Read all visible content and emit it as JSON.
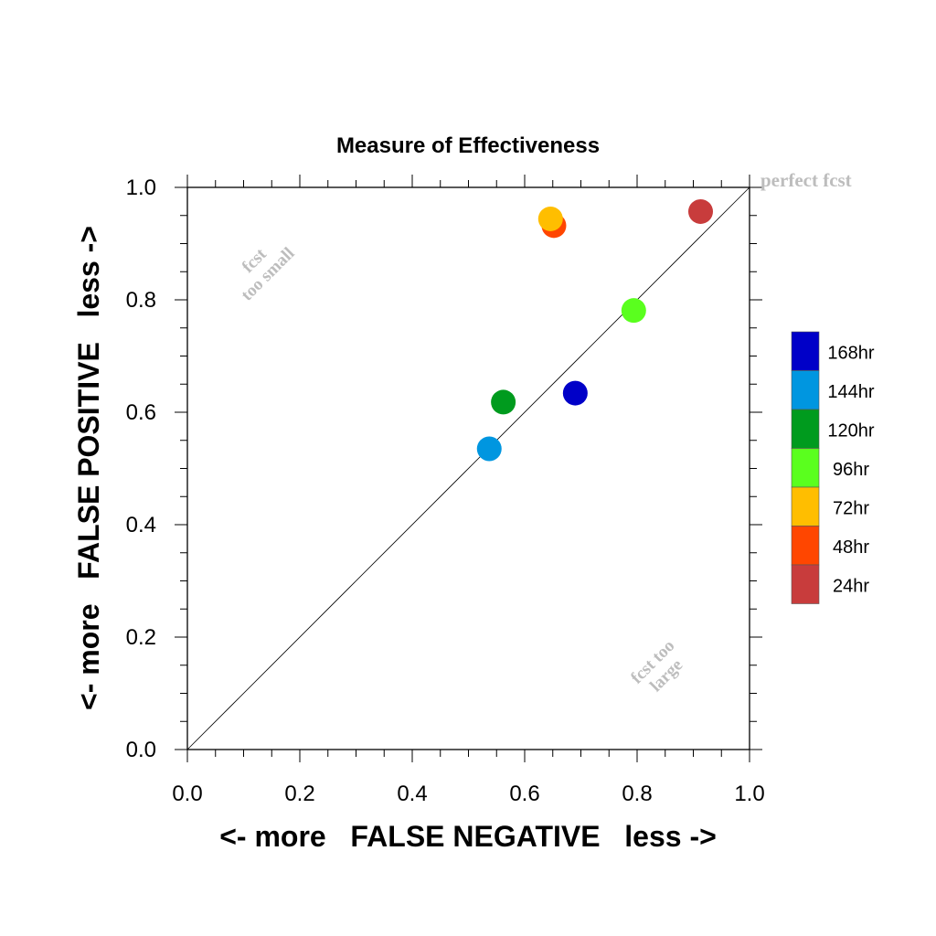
{
  "chart_data": {
    "type": "scatter",
    "title": "Measure of Effectiveness",
    "xlabel": "<- more   FALSE NEGATIVE   less ->",
    "ylabel": "<- more   FALSE POSITIVE   less ->",
    "xlim": [
      0,
      1
    ],
    "ylim": [
      0,
      1
    ],
    "xticks": [
      "0.0",
      "0.2",
      "0.4",
      "0.6",
      "0.8",
      "1.0"
    ],
    "yticks": [
      "0.0",
      "0.2",
      "0.4",
      "0.6",
      "0.8",
      "1.0"
    ],
    "grid": false,
    "diagonal_line": true,
    "annotations": {
      "perfect": "perfect fcst",
      "too_small_1": "fcst",
      "too_small_2": "too small",
      "too_large_1": "fcst too",
      "too_large_2": "large"
    },
    "legend_position": "right",
    "series": [
      {
        "name": "168hr",
        "color": "#0000c8",
        "x": 0.69,
        "y": 0.634
      },
      {
        "name": "144hr",
        "color": "#0096e0",
        "x": 0.537,
        "y": 0.535
      },
      {
        "name": "120hr",
        "color": "#009b1e",
        "x": 0.562,
        "y": 0.618
      },
      {
        "name": "96hr",
        "color": "#5aff1e",
        "x": 0.794,
        "y": 0.781
      },
      {
        "name": "72hr",
        "color": "#ffbe00",
        "x": 0.646,
        "y": 0.944
      },
      {
        "name": "48hr",
        "color": "#ff4600",
        "x": 0.652,
        "y": 0.932
      },
      {
        "name": "24hr",
        "color": "#c83c3c",
        "x": 0.913,
        "y": 0.957
      }
    ]
  }
}
